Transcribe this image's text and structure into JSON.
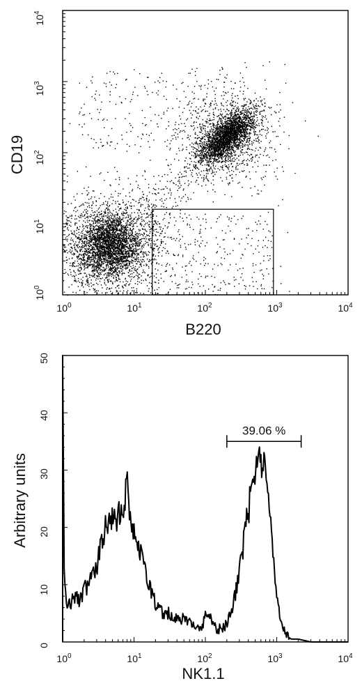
{
  "chart_data": [
    {
      "type": "scatter",
      "xlabel": "B220",
      "ylabel": "CD19",
      "xscale": "log",
      "yscale": "log",
      "xlim": [
        1,
        10000
      ],
      "ylim": [
        1,
        10000
      ],
      "x_ticks": [
        {
          "base": "10",
          "exp": "0"
        },
        {
          "base": "10",
          "exp": "1"
        },
        {
          "base": "10",
          "exp": "2"
        },
        {
          "base": "10",
          "exp": "3"
        },
        {
          "base": "10",
          "exp": "4"
        }
      ],
      "y_ticks": [
        {
          "base": "10",
          "exp": "0"
        },
        {
          "base": "10",
          "exp": "1"
        },
        {
          "base": "10",
          "exp": "2"
        },
        {
          "base": "10",
          "exp": "3"
        },
        {
          "base": "10",
          "exp": "4"
        }
      ],
      "populations": [
        {
          "center": [
            4.5,
            5
          ],
          "density": "high"
        },
        {
          "center": [
            200,
            170
          ],
          "density": "high"
        }
      ],
      "gate": {
        "x_range": [
          18,
          900
        ],
        "y_range": [
          1,
          16
        ]
      }
    },
    {
      "type": "line",
      "xlabel": "NK1.1",
      "ylabel": "Arbitrary units",
      "xscale": "log",
      "xlim": [
        1,
        10000
      ],
      "ylim": [
        0,
        50
      ],
      "x_ticks": [
        {
          "base": "10",
          "exp": "0"
        },
        {
          "base": "10",
          "exp": "1"
        },
        {
          "base": "10",
          "exp": "2"
        },
        {
          "base": "10",
          "exp": "3"
        },
        {
          "base": "10",
          "exp": "4"
        }
      ],
      "y_ticks": [
        "0",
        "10",
        "20",
        "30",
        "40",
        "50"
      ],
      "x": [
        1.0,
        1.05,
        1.1,
        1.2,
        1.3,
        1.5,
        1.7,
        2.0,
        2.5,
        3.0,
        3.5,
        4.0,
        5.0,
        6.0,
        7.0,
        8.0,
        9.0,
        10.0,
        12.0,
        15.0,
        20.0,
        25.0,
        30.0,
        40.0,
        50.0,
        70.0,
        90.0,
        100.0,
        120.0,
        150.0,
        200.0,
        250.0,
        300.0,
        350.0,
        400.0,
        450.0,
        500.0,
        550.0,
        600.0,
        700.0,
        800.0,
        900.0,
        1000.0,
        1200.0,
        1400.0,
        1600.0,
        2000.0,
        3000.0,
        5000.0,
        10000.0
      ],
      "y": [
        50,
        12,
        8,
        6,
        7,
        8,
        7,
        9,
        11,
        13,
        17,
        20,
        21,
        22,
        24,
        28,
        22,
        20,
        16,
        11,
        7,
        5,
        5,
        4,
        4,
        3,
        2,
        5,
        4,
        2,
        3,
        7,
        12,
        18,
        23,
        27,
        30,
        33,
        32,
        30,
        22,
        14,
        8,
        3,
        1,
        0.5,
        0.5,
        0,
        0,
        0
      ],
      "annotation": {
        "text": "39.06 %",
        "x_range": [
          200,
          2200
        ],
        "y": 35
      }
    }
  ]
}
